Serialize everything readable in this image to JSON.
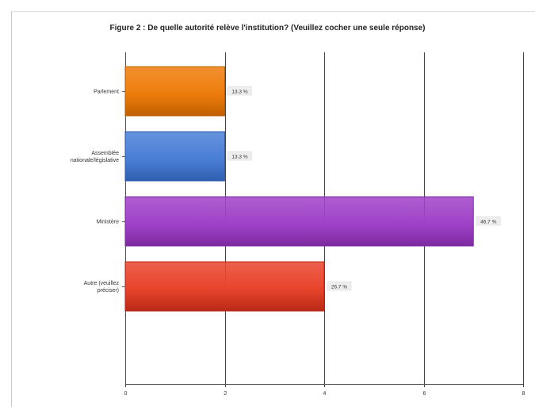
{
  "chart_data": {
    "type": "bar",
    "orientation": "horizontal",
    "title": "Figure 2 : De quelle autorité relève l'institution? (Veuillez cocher une seule réponse)",
    "xlabel": "",
    "ylabel": "",
    "categories": [
      "Parlement",
      "Assemblée nationale/législative",
      "Ministère",
      "Autre (veuillez préciser)"
    ],
    "values": [
      2,
      2,
      7,
      4
    ],
    "data_labels": [
      "13.3 %",
      "13.3 %",
      "46.7 %",
      "26.7 %"
    ],
    "xlim": [
      0,
      8
    ],
    "xticks": [
      "0",
      "2",
      "4",
      "6",
      "8"
    ],
    "grid": true,
    "legend": "none",
    "colors": [
      "#ee7d0c",
      "#4a7fd6",
      "#a042c8",
      "#e9442c"
    ],
    "edge_colors": [
      "#c05f00",
      "#2f5fae",
      "#7c2aa0",
      "#b82a17"
    ]
  }
}
